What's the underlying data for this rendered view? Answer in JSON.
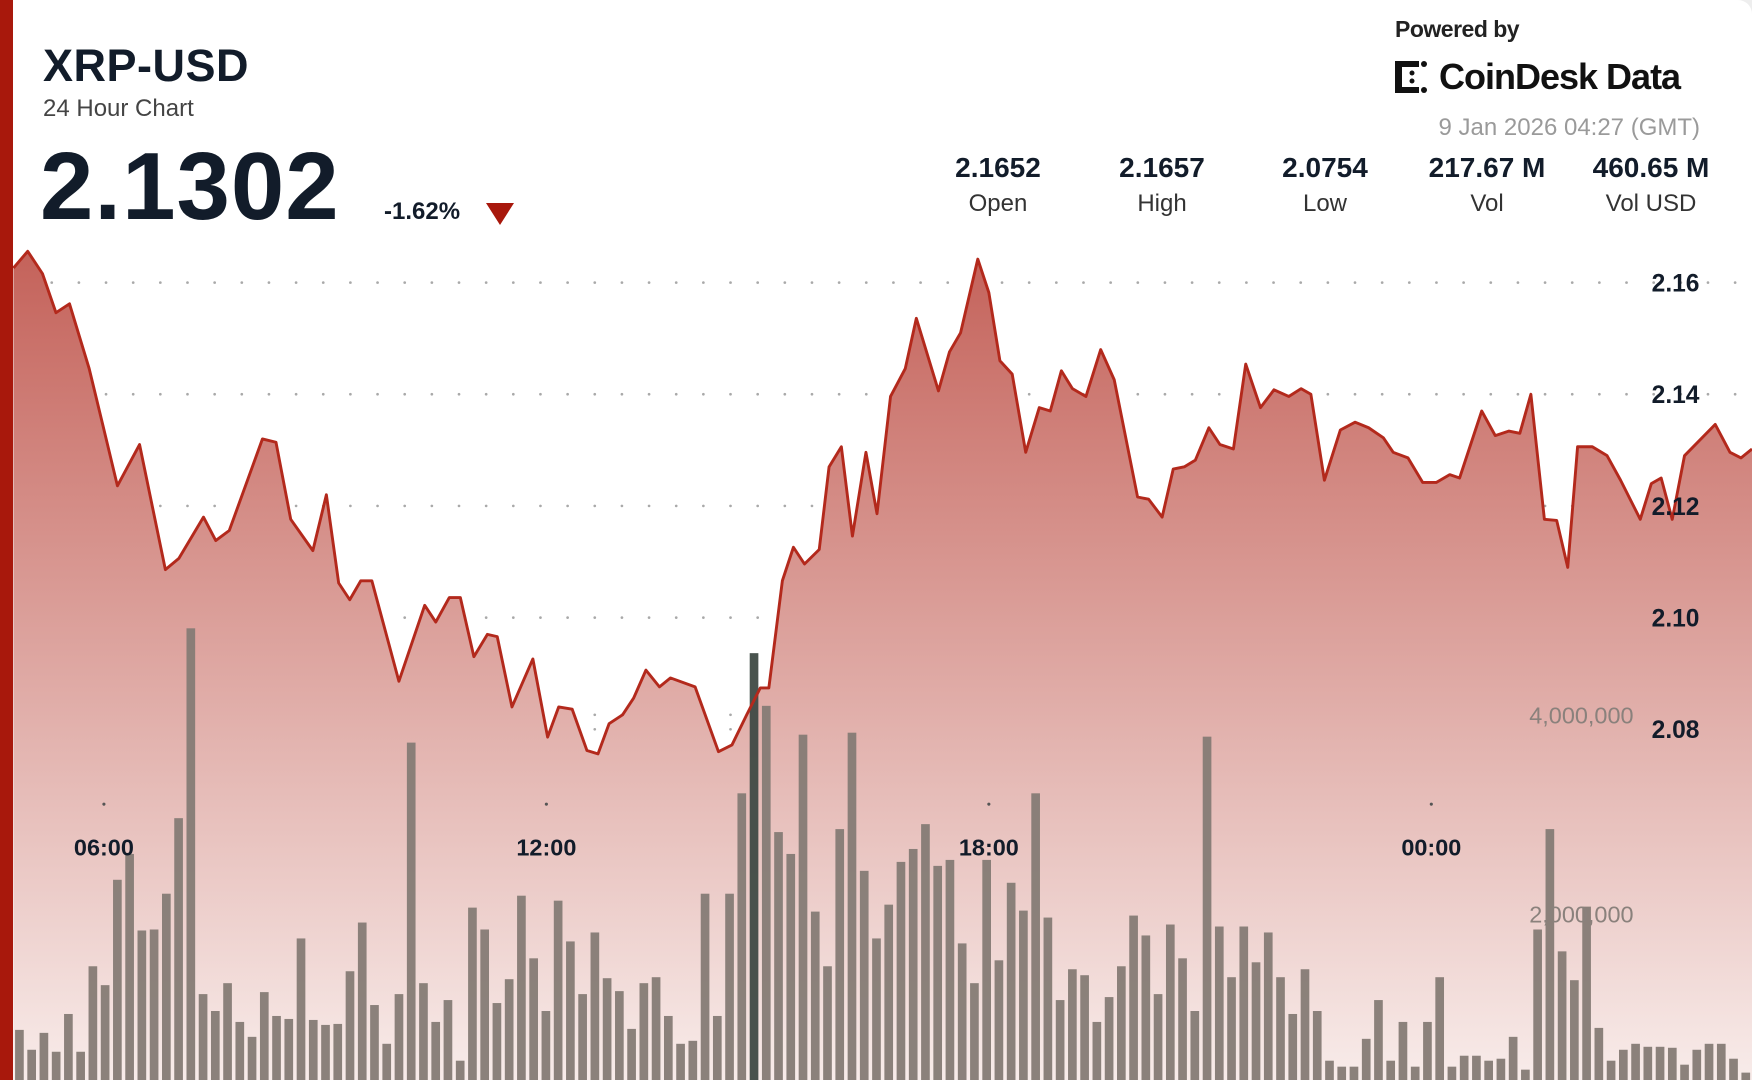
{
  "header": {
    "title": "XRP-USD",
    "subtitle": "24 Hour Chart",
    "price": "2.1302",
    "change": "-1.62%",
    "change_direction": "down",
    "powered_by": "Powered by",
    "brand": "CoinDesk Data",
    "timestamp": "9 Jan 2026 04:27 (GMT)"
  },
  "stats": [
    {
      "value": "2.1652",
      "label": "Open"
    },
    {
      "value": "2.1657",
      "label": "High"
    },
    {
      "value": "2.0754",
      "label": "Low"
    },
    {
      "value": "217.67 M",
      "label": "Vol"
    },
    {
      "value": "460.65 M",
      "label": "Vol USD"
    }
  ],
  "colors": {
    "accent": "#a8180c",
    "line": "#b3291c",
    "fill_top": "#c4625a",
    "fill_bottom": "#f8ecea",
    "volume_bar": "#857b75",
    "volume_bar_highlight": "#3f4a44",
    "text": "#121c2a"
  },
  "chart_data": {
    "type": "area",
    "price_axis": {
      "ticks": [
        "2.16",
        "2.14",
        "2.12",
        "2.10",
        "2.08"
      ],
      "tick_values": [
        2.16,
        2.14,
        2.12,
        2.1,
        2.08
      ],
      "position": "right"
    },
    "volume_axis": {
      "ticks": [
        "4,000,000",
        "2,000,000"
      ],
      "tick_values": [
        4000000,
        2000000
      ]
    },
    "time_axis": {
      "ticks": [
        "06:00",
        "12:00",
        "18:00",
        "00:00"
      ]
    },
    "grid": true,
    "price": {
      "x": [
        "04:46",
        "04:58",
        "05:10",
        "05:21",
        "05:32",
        "05:48",
        "05:59",
        "06:11",
        "06:29",
        "06:50",
        "07:01",
        "07:21",
        "07:31",
        "07:42",
        "08:09",
        "08:20",
        "08:32",
        "08:50",
        "09:01",
        "09:11",
        "09:20",
        "09:29",
        "09:38",
        "10:00",
        "10:21",
        "10:30",
        "10:41",
        "10:50",
        "11:01",
        "11:12",
        "11:20",
        "11:32",
        "11:49",
        "12:01",
        "12:10",
        "12:21",
        "12:33",
        "12:42",
        "12:51",
        "13:02",
        "13:11",
        "13:21",
        "13:32",
        "13:41",
        "14:01",
        "14:20",
        "14:31",
        "14:43",
        "14:54",
        "15:01",
        "15:12",
        "15:21",
        "15:30",
        "15:42",
        "15:50",
        "16:00",
        "16:09",
        "16:20",
        "16:29",
        "16:40",
        "16:52",
        "17:01",
        "17:19",
        "17:28",
        "17:37",
        "17:51",
        "18:00",
        "18:09",
        "18:19",
        "18:30",
        "18:41",
        "18:50",
        "18:59",
        "19:08",
        "19:19",
        "19:31",
        "19:42",
        "20:01",
        "20:10",
        "20:21",
        "20:30",
        "20:39",
        "20:48",
        "20:59",
        "21:08",
        "21:19",
        "21:29",
        "21:41",
        "21:52",
        "22:04",
        "22:14",
        "22:22",
        "22:33",
        "22:46",
        "22:58",
        "23:09",
        "23:21",
        "23:29",
        "23:41",
        "23:53",
        "00:04",
        "00:15",
        "00:23",
        "00:41",
        "00:52",
        "01:03",
        "01:12",
        "01:21",
        "01:32",
        "01:42",
        "01:51",
        "01:59",
        "02:11",
        "02:23",
        "02:34",
        "02:50",
        "02:59",
        "03:07",
        "03:16",
        "03:26",
        "03:51",
        "04:03",
        "04:12",
        "04:21"
      ],
      "y": [
        2.1626,
        2.1656,
        2.1616,
        2.1546,
        2.1562,
        2.1446,
        2.1346,
        2.1236,
        2.131,
        2.1086,
        2.1106,
        2.118,
        2.1138,
        2.1156,
        2.132,
        2.1314,
        2.1176,
        2.112,
        2.122,
        2.1062,
        2.1032,
        2.1066,
        2.1066,
        2.0886,
        2.1022,
        2.0992,
        2.1036,
        2.1036,
        2.093,
        2.097,
        2.0966,
        2.084,
        2.0926,
        2.0786,
        2.084,
        2.0836,
        2.0762,
        2.0756,
        2.081,
        2.0826,
        2.0856,
        2.0906,
        2.0876,
        2.0892,
        2.0876,
        2.076,
        2.0772,
        2.0826,
        2.0874,
        2.0874,
        2.1066,
        2.1126,
        2.1096,
        2.1122,
        2.127,
        2.1306,
        2.1146,
        2.1296,
        2.1186,
        2.1396,
        2.1446,
        2.1536,
        2.1406,
        2.1476,
        2.151,
        2.1642,
        2.1582,
        2.146,
        2.1436,
        2.1296,
        2.1376,
        2.137,
        2.1442,
        2.141,
        2.1396,
        2.148,
        2.1426,
        2.1216,
        2.1212,
        2.118,
        2.1266,
        2.127,
        2.1282,
        2.134,
        2.131,
        2.1302,
        2.1454,
        2.1376,
        2.1408,
        2.1396,
        2.141,
        2.14,
        2.1246,
        2.1336,
        2.135,
        2.134,
        2.1322,
        2.1296,
        2.1286,
        2.1242,
        2.1242,
        2.1256,
        2.125,
        2.137,
        2.1326,
        2.1334,
        2.133,
        2.14,
        2.1176,
        2.1174,
        2.109,
        2.1306,
        2.1306,
        2.129,
        2.1246,
        2.1176,
        2.124,
        2.125,
        2.1176,
        2.129,
        2.1346,
        2.1296,
        2.1286,
        2.1302
      ]
    },
    "volume": [
      830000,
      630000,
      800000,
      610000,
      990000,
      610000,
      1470000,
      1280000,
      2340000,
      2600000,
      1830000,
      1840000,
      2200000,
      2960000,
      4870000,
      1190000,
      1020000,
      1300000,
      910000,
      760000,
      1210000,
      970000,
      940000,
      1750000,
      930000,
      880000,
      890000,
      1420000,
      1910000,
      1080000,
      690000,
      1190000,
      3720000,
      1300000,
      910000,
      1130000,
      520000,
      2060000,
      1840000,
      1100000,
      1340000,
      2180000,
      1550000,
      1020000,
      2130000,
      1720000,
      1190000,
      1810000,
      1350000,
      1220000,
      840000,
      1300000,
      1360000,
      970000,
      690000,
      720000,
      2200000,
      970000,
      2200000,
      3210000,
      4620000,
      4090000,
      2820000,
      2600000,
      3800000,
      2020000,
      1470000,
      2850000,
      3820000,
      2430000,
      1750000,
      2090000,
      2520000,
      2650000,
      2900000,
      2480000,
      2540000,
      1700000,
      1300000,
      2540000,
      1530000,
      2310000,
      2030000,
      3210000,
      1960000,
      1130000,
      1440000,
      1380000,
      910000,
      1160000,
      1470000,
      1980000,
      1780000,
      1190000,
      1890000,
      1550000,
      1020000,
      3780000,
      1870000,
      1360000,
      1870000,
      1510000,
      1810000,
      1360000,
      990000,
      1440000,
      1020000,
      520000,
      460000,
      460000,
      740000,
      1130000,
      520000,
      910000,
      460000,
      910000,
      1360000,
      460000,
      570000,
      570000,
      520000,
      540000,
      760000,
      430000,
      1840000,
      2850000,
      1620000,
      1330000,
      2070000,
      850000,
      520000,
      630000,
      690000,
      660000,
      660000,
      650000,
      480000,
      630000,
      690000,
      690000,
      540000,
      400000
    ],
    "highlighted_volume_index": 60
  }
}
